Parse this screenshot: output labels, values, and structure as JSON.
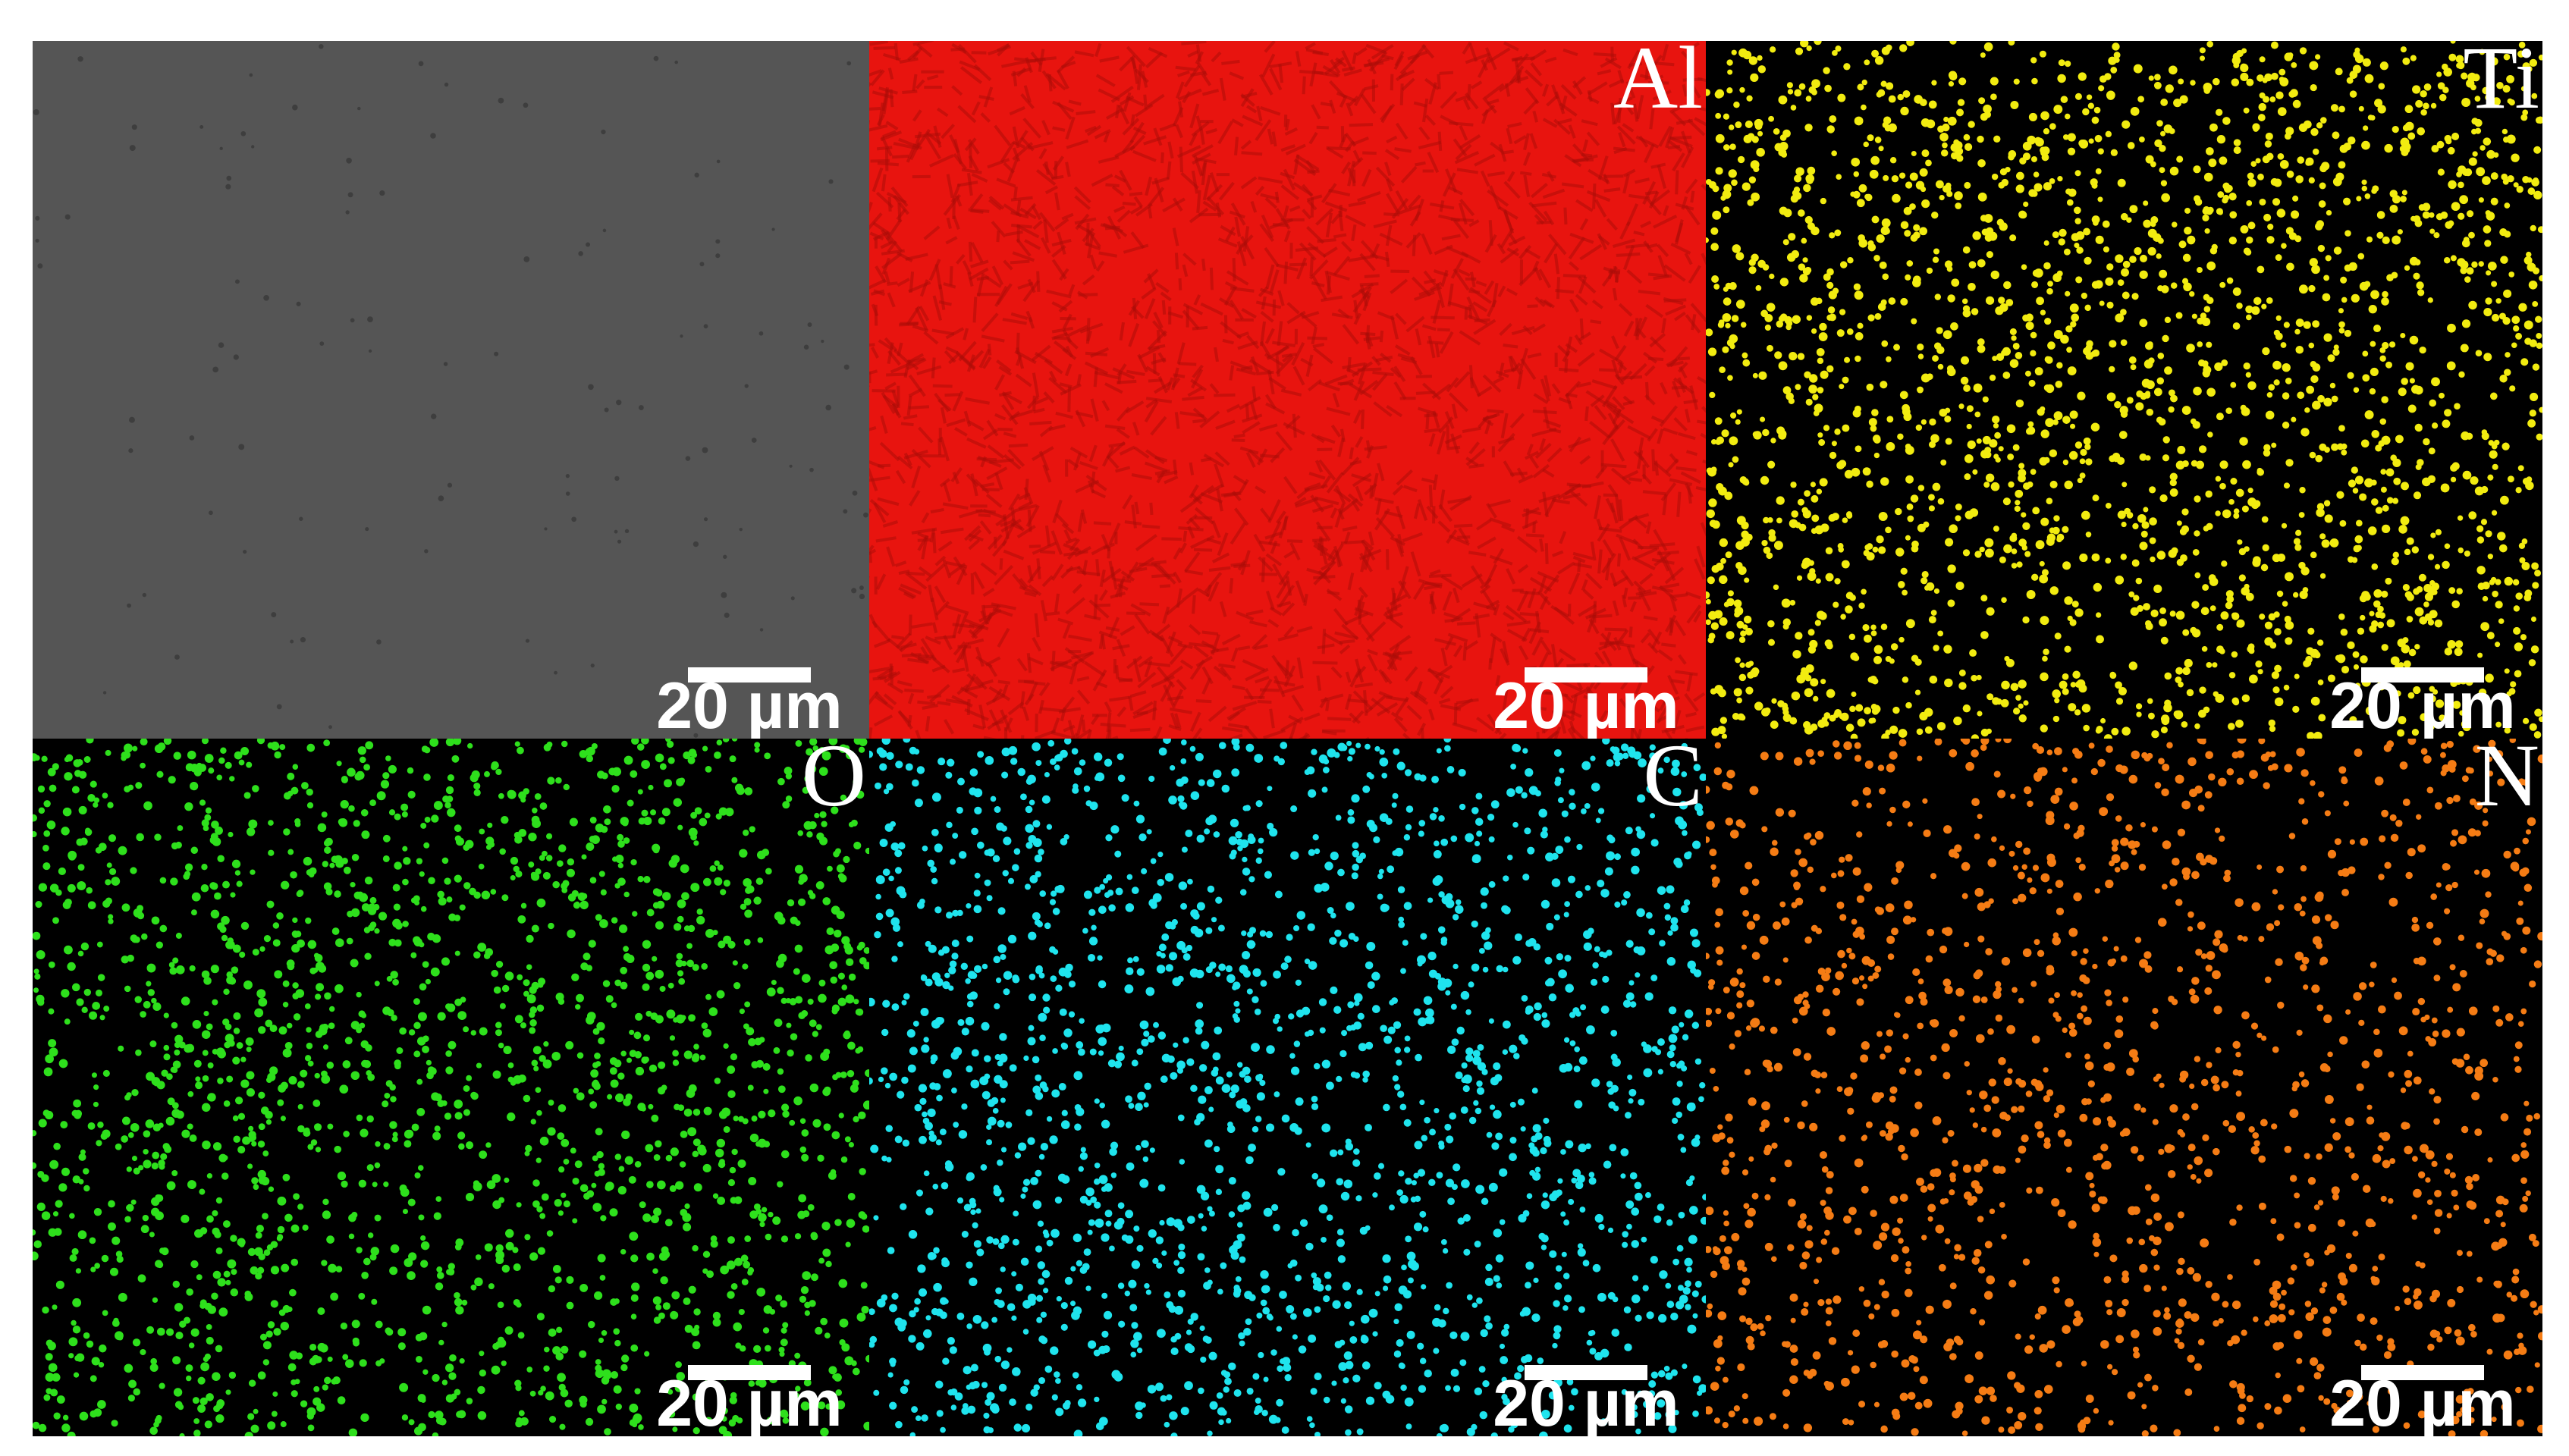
{
  "panels": [
    {
      "scale_bar": "20 µm"
    },
    {
      "label": "Al",
      "scale_bar": "20 µm"
    },
    {
      "label": "Ti",
      "scale_bar": "20 µm"
    },
    {
      "label": "O",
      "scale_bar": "20 µm"
    },
    {
      "label": "C",
      "scale_bar": "20 µm"
    },
    {
      "label": "N",
      "scale_bar": "20 µm"
    }
  ]
}
